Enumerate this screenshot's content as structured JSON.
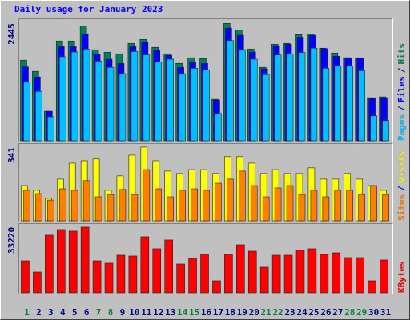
{
  "title": "Daily usage for January 2023",
  "legend_separator": "/",
  "chart_data": [
    {
      "type": "bar",
      "categories": [
        "1",
        "2",
        "3",
        "4",
        "5",
        "6",
        "7",
        "8",
        "9",
        "10",
        "11",
        "12",
        "13",
        "14",
        "15",
        "16",
        "17",
        "18",
        "19",
        "20",
        "21",
        "22",
        "23",
        "24",
        "25",
        "26",
        "27",
        "28",
        "29",
        "30",
        "31"
      ],
      "category_colors": [
        "#008040",
        "#000080",
        "#000080",
        "#000080",
        "#000080",
        "#000080",
        "#008040",
        "#008040",
        "#000080",
        "#000080",
        "#000080",
        "#000080",
        "#000080",
        "#008040",
        "#008040",
        "#000080",
        "#000080",
        "#000080",
        "#000080",
        "#000080",
        "#008040",
        "#008040",
        "#000080",
        "#000080",
        "#000080",
        "#000080",
        "#000080",
        "#008040",
        "#008040",
        "#000080",
        "#000080"
      ],
      "ylim": [
        0,
        2500
      ],
      "yticks": [
        2445
      ],
      "series": [
        {
          "name": "Hits",
          "color": "#00805c",
          "values": [
            1680,
            1447,
            615,
            2079,
            2079,
            2395,
            1896,
            1846,
            1813,
            2029,
            2112,
            1946,
            1813,
            1613,
            1730,
            1713,
            865,
            2445,
            2312,
            1912,
            1530,
            2012,
            2029,
            2212,
            2228,
            1929,
            1829,
            1730,
            1730,
            898,
            915
          ]
        },
        {
          "name": "Files",
          "color": "#0000ff",
          "values": [
            1540,
            1330,
            615,
            1960,
            1960,
            2230,
            1800,
            1700,
            1610,
            1960,
            2050,
            1880,
            1780,
            1530,
            1630,
            1610,
            850,
            2350,
            2200,
            1850,
            1500,
            1980,
            2010,
            2160,
            2200,
            1920,
            1760,
            1730,
            1720,
            880,
            900
          ]
        },
        {
          "name": "Pages",
          "color": "#00c0ff",
          "values": [
            1220,
            1030,
            500,
            1750,
            1850,
            1910,
            1660,
            1530,
            1400,
            1860,
            1790,
            1640,
            1700,
            1400,
            1510,
            1480,
            570,
            2090,
            1900,
            1700,
            1380,
            1790,
            1810,
            1840,
            1930,
            1510,
            1560,
            1560,
            1460,
            520,
            420
          ]
        }
      ]
    },
    {
      "type": "bar",
      "ylim": [
        0,
        352
      ],
      "yticks": [
        341
      ],
      "series": [
        {
          "name": "Visits",
          "color": "#ffff00",
          "values": [
            163,
            141,
            104,
            193,
            267,
            278,
            286,
            141,
            208,
            304,
            341,
            278,
            230,
            219,
            237,
            237,
            219,
            297,
            297,
            267,
            219,
            237,
            219,
            219,
            245,
            193,
            193,
            219,
            193,
            163,
            141
          ]
        },
        {
          "name": "Sites",
          "color": "#ff8000",
          "values": [
            141,
            126,
            96,
            148,
            141,
            186,
            111,
            122,
            145,
            122,
            237,
            148,
            111,
            141,
            148,
            141,
            174,
            193,
            230,
            163,
            111,
            152,
            163,
            122,
            141,
            111,
            141,
            141,
            122,
            163,
            122
          ]
        }
      ]
    },
    {
      "type": "bar",
      "ylim": [
        0,
        34400
      ],
      "yticks": [
        33220
      ],
      "series": [
        {
          "name": "KBytes",
          "color": "#ff0000",
          "values": [
            16200,
            10530,
            29160,
            32000,
            31190,
            33220,
            16200,
            14990,
            19040,
            18630,
            28350,
            22280,
            26730,
            14580,
            17420,
            19440,
            6080,
            19440,
            24300,
            21060,
            12960,
            19040,
            19040,
            21470,
            22280,
            19440,
            20250,
            17820,
            17820,
            6080,
            16610
          ]
        }
      ]
    }
  ]
}
